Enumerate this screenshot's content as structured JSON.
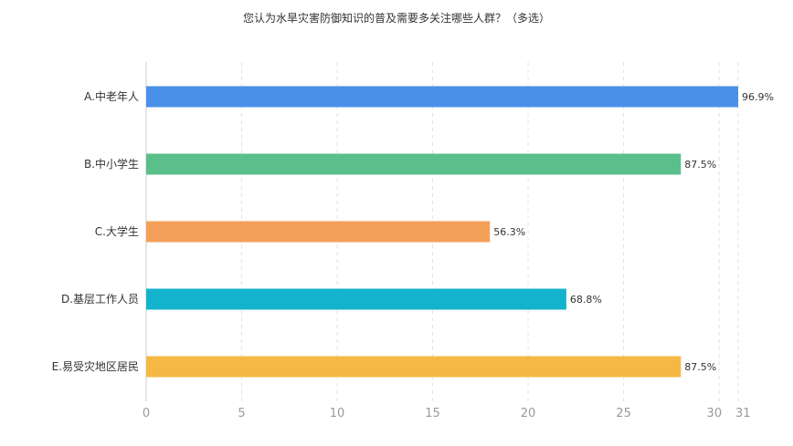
{
  "chart_data": {
    "type": "bar",
    "orientation": "horizontal",
    "title": "您认为水旱灾害防御知识的普及需要多关注哪些人群？（多选）",
    "categories": [
      "A.中老年人",
      "B.中小学生",
      "C.大学生",
      "D.基层工作人员",
      "E.易受灾地区居民"
    ],
    "values": [
      31,
      28,
      18,
      22,
      28
    ],
    "percent_labels": [
      "96.9%",
      "87.5%",
      "56.3%",
      "68.8%",
      "87.5%"
    ],
    "colors": [
      "#4a90e8",
      "#5abf8a",
      "#f5a05a",
      "#13b3cd",
      "#f5b845"
    ],
    "xlim": [
      0,
      31
    ],
    "x_ticks": [
      0,
      5,
      10,
      15,
      20,
      25,
      30,
      31
    ],
    "grid": true,
    "legend": "none"
  }
}
